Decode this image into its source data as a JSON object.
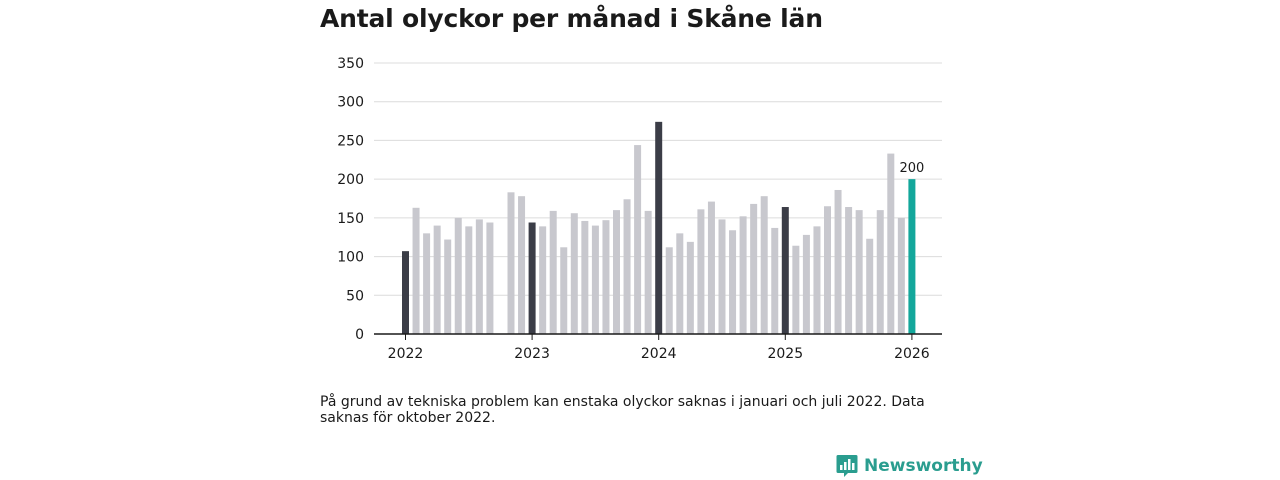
{
  "colors": {
    "bar": "#c8c8ce",
    "january": "#3b3d47",
    "latest": "#13a79b",
    "grid": "#dcdcdc",
    "axis": "#1a1a1a",
    "brand": "#2a9d8f"
  },
  "brand": {
    "name": "Newsworthy",
    "icon": "bar-chart-speech-icon"
  },
  "chart_data": {
    "type": "bar",
    "title": "Antal olyckor per månad i Skåne län",
    "xlabel": "",
    "ylabel": "",
    "ylim": [
      0,
      350
    ],
    "yticks": [
      "0",
      "50",
      "100",
      "150",
      "200",
      "250",
      "300",
      "350"
    ],
    "xticks": [
      "2022",
      "2023",
      "2024",
      "2025",
      "2026"
    ],
    "annotation": "200",
    "note": "På grund av tekniska problem kan enstaka olyckor saknas i januari och juli 2022. Data saknas för oktober 2022.",
    "categories": [
      "2022-01",
      "2022-02",
      "2022-03",
      "2022-04",
      "2022-05",
      "2022-06",
      "2022-07",
      "2022-08",
      "2022-09",
      "2022-10",
      "2022-11",
      "2022-12",
      "2023-01",
      "2023-02",
      "2023-03",
      "2023-04",
      "2023-05",
      "2023-06",
      "2023-07",
      "2023-08",
      "2023-09",
      "2023-10",
      "2023-11",
      "2023-12",
      "2024-01",
      "2024-02",
      "2024-03",
      "2024-04",
      "2024-05",
      "2024-06",
      "2024-07",
      "2024-08",
      "2024-09",
      "2024-10",
      "2024-11",
      "2024-12",
      "2025-01",
      "2025-02",
      "2025-03",
      "2025-04",
      "2025-05",
      "2025-06",
      "2025-07",
      "2025-08",
      "2025-09",
      "2025-10",
      "2025-11",
      "2025-12",
      "2026-01"
    ],
    "values": [
      107,
      163,
      130,
      140,
      122,
      150,
      139,
      148,
      144,
      null,
      183,
      178,
      144,
      139,
      159,
      112,
      156,
      146,
      140,
      147,
      160,
      174,
      244,
      159,
      274,
      112,
      130,
      119,
      161,
      171,
      148,
      134,
      152,
      168,
      178,
      137,
      164,
      114,
      128,
      139,
      165,
      186,
      164,
      160,
      123,
      160,
      233,
      150,
      200
    ]
  }
}
